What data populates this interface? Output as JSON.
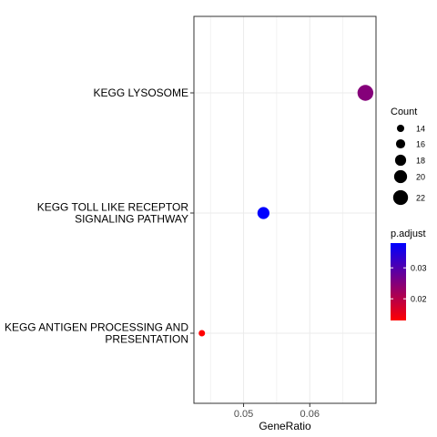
{
  "chart_data": {
    "type": "scatter",
    "title": "",
    "xlabel": "GeneRatio",
    "ylabel": "",
    "xlim": [
      0.0425,
      0.07
    ],
    "x_ticks": [
      0.05,
      0.06
    ],
    "x_tick_labels": [
      "0.05",
      "0.06"
    ],
    "grid": true,
    "categories": [
      "KEGG LYSOSOME",
      "KEGG TOLL LIKE RECEPTOR SIGNALING PATHWAY",
      "KEGG ANTIGEN PROCESSING AND PRESENTATION"
    ],
    "category_label_lines": [
      [
        "KEGG LYSOSOME"
      ],
      [
        "KEGG TOLL LIKE RECEPTOR",
        "SIGNALING PATHWAY"
      ],
      [
        "KEGG ANTIGEN PROCESSING AND",
        "PRESENTATION"
      ]
    ],
    "points": [
      {
        "category": "KEGG LYSOSOME",
        "gene_ratio": 0.0684,
        "count": 23,
        "p_adjust": 0.025
      },
      {
        "category": "KEGG TOLL LIKE RECEPTOR SIGNALING PATHWAY",
        "gene_ratio": 0.053,
        "count": 19,
        "p_adjust": 0.038
      },
      {
        "category": "KEGG ANTIGEN PROCESSING AND PRESENTATION",
        "gene_ratio": 0.0437,
        "count": 13,
        "p_adjust": 0.013
      }
    ],
    "size_legend": {
      "title": "Count",
      "values": [
        14,
        16,
        18,
        20,
        22
      ],
      "labels": [
        "14",
        "16",
        "18",
        "20",
        "22"
      ],
      "marker_color": "#000000"
    },
    "color_legend": {
      "title": "p.adjust",
      "range": [
        0.013,
        0.038
      ],
      "ticks": [
        0.02,
        0.03
      ],
      "tick_labels": [
        "0.02",
        "0.03"
      ],
      "low_color": "#ff0000",
      "high_color": "#0000ff"
    },
    "legend_position": "right"
  }
}
